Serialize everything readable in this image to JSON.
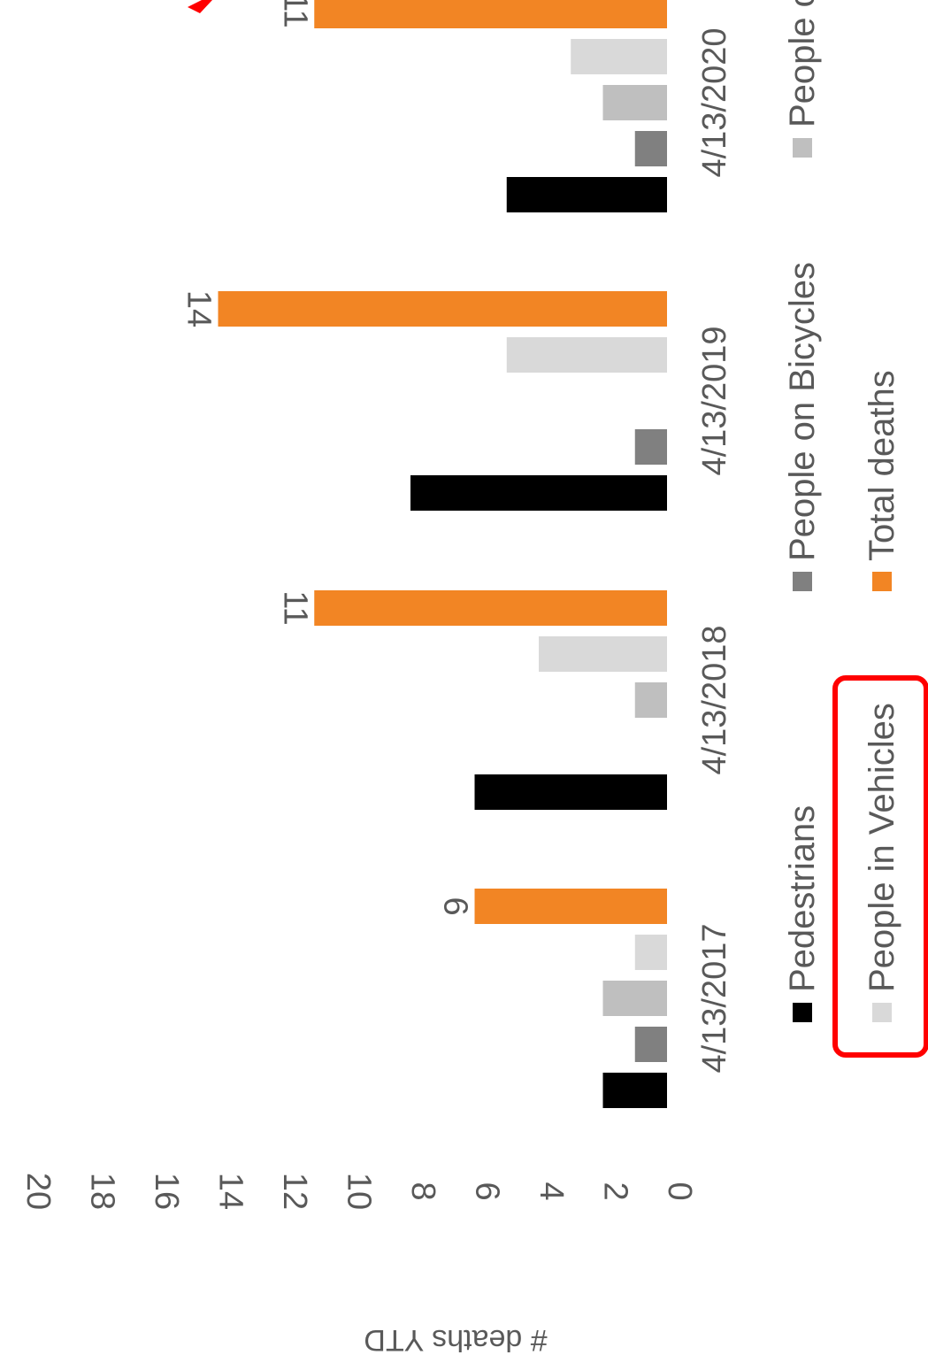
{
  "chart_data": {
    "type": "bar",
    "orientation": "rotated-90-clockwise",
    "ylabel": "# deaths YTD",
    "ylim": [
      0,
      20
    ],
    "y_ticks": [
      "0",
      "2",
      "4",
      "6",
      "8",
      "10",
      "12",
      "14",
      "16",
      "18",
      "20"
    ],
    "categories": [
      "4/13/2017",
      "4/13/2018",
      "4/13/2019",
      "4/13/2020"
    ],
    "series": [
      {
        "name": "Pedestrians",
        "color": "#000000",
        "values": [
          2,
          6,
          8,
          5
        ]
      },
      {
        "name": "People on Bicycles",
        "color": "#808080",
        "values": [
          1,
          0,
          1,
          1
        ]
      },
      {
        "name": "People on Motorcycles",
        "color": "#bfbfbf",
        "values": [
          2,
          1,
          0,
          2
        ]
      },
      {
        "name": "People in Vehicles",
        "color": "#d9d9d9",
        "values": [
          1,
          4,
          5,
          3
        ]
      },
      {
        "name": "Total deaths",
        "color": "#f28524",
        "values": [
          6,
          11,
          14,
          11
        ]
      }
    ],
    "data_labels": {
      "series": "Total deaths",
      "values": [
        "6",
        "11",
        "14",
        "11"
      ]
    },
    "legend": {
      "placement": "bottom",
      "entries": [
        {
          "text": "Pedestrians",
          "color": "#000000"
        },
        {
          "text": "People on Bicycles",
          "color": "#808080"
        },
        {
          "text": "People o",
          "color": "#bfbfbf"
        },
        {
          "text": "People in Vehicles",
          "color": "#d9d9d9"
        },
        {
          "text": "Total deaths",
          "color": "#f28524"
        }
      ]
    },
    "grid": false
  },
  "annotation": {
    "highlight_color": "#ff0000",
    "highlighted_legend_entry": "People in Vehicles"
  }
}
